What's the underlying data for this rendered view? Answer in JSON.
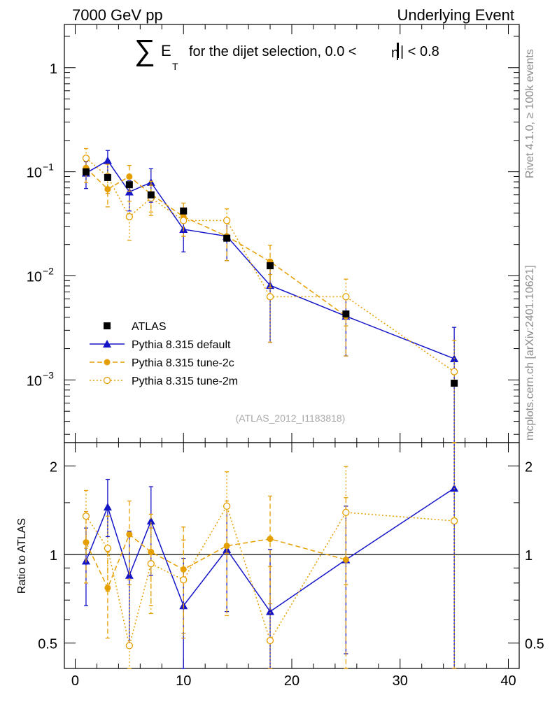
{
  "header": {
    "left_label": "7000 GeV pp",
    "right_label": "Underlying Event"
  },
  "side_labels": {
    "rivet": "Rivet 4.1.0, ≥ 100k events",
    "mcplots": "mcplots.cern.ch [arXiv:2401.10621]"
  },
  "chart_data": {
    "type": "line",
    "title": {
      "sum_symbol": "∑",
      "E": "E",
      "T": "T",
      "rest": "for the dijet selection, 0.0 <",
      "eta": "η",
      "end": "| < 0.8"
    },
    "analysis_id": "(ATLAS_2012_I1183818)",
    "upper": {
      "yscale": "log",
      "ylim": [
        0.00025,
        2.6
      ],
      "yticks": [
        0.001,
        0.01,
        0.1,
        1
      ],
      "ytick_labels": [
        {
          "base": "10",
          "exp": "−3"
        },
        {
          "base": "10",
          "exp": "−2"
        },
        {
          "base": "10",
          "exp": "−1"
        },
        {
          "base": "1",
          "exp": ""
        }
      ]
    },
    "lower": {
      "ylabel": "Ratio to ATLAS",
      "ylim": [
        0.41,
        2.4
      ],
      "yscale": "log",
      "yticks": [
        0.5,
        1,
        2
      ],
      "ytick_labels": [
        "0.5",
        "1",
        "2"
      ],
      "reference_line": 1
    },
    "xlim": [
      -1,
      41
    ],
    "xticks": [
      0,
      10,
      20,
      30,
      40
    ],
    "xtick_labels": [
      "0",
      "10",
      "20",
      "30",
      "40"
    ],
    "legend_position": "center-left",
    "series": [
      {
        "name": "ATLAS",
        "color": "#000000",
        "marker": "square",
        "line": "none",
        "x": [
          1,
          3,
          5,
          7,
          10,
          14,
          18,
          25,
          35
        ],
        "y": [
          0.1,
          0.088,
          0.075,
          0.06,
          0.042,
          0.023,
          0.0125,
          0.0043,
          0.00093
        ],
        "err": [
          0.002,
          0.002,
          0.002,
          0.0015,
          0.001,
          0.0008,
          0.0005,
          0.0002,
          6e-05
        ]
      },
      {
        "name": "Pythia 8.315 default",
        "color": "#1515c8",
        "marker": "triangle",
        "line": "solid",
        "x": [
          1,
          3,
          5,
          7,
          10,
          14,
          18,
          25,
          35
        ],
        "y": [
          0.097,
          0.128,
          0.064,
          0.079,
          0.028,
          0.024,
          0.0081,
          0.0041,
          0.0016
        ],
        "err_lo": [
          0.028,
          0.045,
          0.022,
          0.028,
          0.011,
          0.01,
          0.0058,
          0.0024,
          0.0016
        ],
        "err_hi": [
          0.028,
          0.032,
          0.018,
          0.028,
          0.011,
          0.01,
          0.0058,
          0.0024,
          0.0016
        ],
        "ratio": [
          0.95,
          1.45,
          0.85,
          1.3,
          0.67,
          1.04,
          0.64,
          0.96,
          1.68
        ],
        "ratio_err_lo": [
          0.28,
          0.3,
          0.35,
          0.45,
          0.3,
          0.4,
          0.4,
          0.5,
          1.3
        ],
        "ratio_err_hi": [
          0.28,
          0.35,
          0.35,
          0.4,
          0.3,
          0.4,
          0.4,
          0.5,
          1.3
        ]
      },
      {
        "name": "Pythia 8.315 tune-2c",
        "color": "#e69f00",
        "marker": "circle-filled",
        "line": "dashed",
        "x": [
          1,
          3,
          5,
          7,
          10,
          14,
          18,
          25
        ],
        "y": [
          0.109,
          0.068,
          0.09,
          0.061,
          0.037,
          0.024,
          0.0137,
          0.0041
        ],
        "err_lo": [
          0.03,
          0.022,
          0.025,
          0.02,
          0.013,
          0.01,
          0.006,
          0.0024
        ],
        "err_hi": [
          0.03,
          0.022,
          0.025,
          0.02,
          0.013,
          0.01,
          0.006,
          0.0024
        ],
        "ratio": [
          1.1,
          0.77,
          1.17,
          1.02,
          0.89,
          1.07,
          1.13,
          0.96
        ],
        "ratio_err_lo": [
          0.3,
          0.25,
          0.35,
          0.35,
          0.35,
          0.45,
          0.45,
          0.6
        ],
        "ratio_err_hi": [
          0.3,
          0.25,
          0.35,
          0.35,
          0.35,
          0.45,
          0.45,
          0.6
        ]
      },
      {
        "name": "Pythia 8.315 tune-2m",
        "color": "#e69f00",
        "marker": "circle-open",
        "line": "dotted",
        "x": [
          1,
          3,
          5,
          7,
          10,
          14,
          18,
          25,
          35
        ],
        "y": [
          0.135,
          0.09,
          0.037,
          0.056,
          0.034,
          0.034,
          0.0063,
          0.0063,
          0.0012
        ],
        "err_lo": [
          0.032,
          0.028,
          0.015,
          0.018,
          0.01,
          0.01,
          0.004,
          0.003,
          0.0012
        ],
        "err_hi": [
          0.032,
          0.028,
          0.015,
          0.018,
          0.01,
          0.01,
          0.004,
          0.003,
          0.0012
        ],
        "ratio": [
          1.35,
          1.05,
          0.49,
          0.93,
          0.82,
          1.46,
          0.51,
          1.39,
          1.3
        ],
        "ratio_err_lo": [
          0.3,
          0.3,
          0.3,
          0.3,
          0.3,
          0.45,
          0.4,
          0.6,
          1.3
        ],
        "ratio_err_hi": [
          0.3,
          0.3,
          0.3,
          0.3,
          0.3,
          0.45,
          0.4,
          0.6,
          1.3
        ]
      }
    ]
  }
}
